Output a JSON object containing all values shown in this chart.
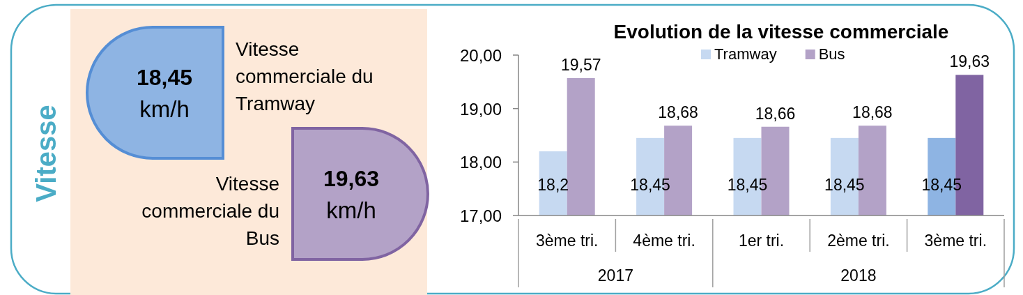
{
  "chart_data": [
    {
      "type": "other",
      "title": "Vitesse",
      "annotations": [
        "18,45",
        "km/h",
        "Vitesse commerciale du Tramway",
        "19,63",
        "km/h",
        "Vitesse commerciale du Bus"
      ]
    },
    {
      "type": "bar",
      "title": "Evolution de la vitesse commerciale",
      "categories": [
        "3ème tri.",
        "4ème tri.",
        "1er tri.",
        "2ème tri.",
        "3ème tri."
      ],
      "series": [
        {
          "name": "Tramway",
          "color": "#c6d9f1",
          "colors": [
            "#c6d9f1",
            "#c6d9f1",
            "#c6d9f1",
            "#c6d9f1",
            "#8eb4e3"
          ],
          "values": [
            18.2,
            18.45,
            18.45,
            18.45,
            18.45
          ],
          "value_labels": [
            "18,2",
            "18,45",
            "18,45",
            "18,45",
            "18,45"
          ]
        },
        {
          "name": "Bus",
          "color": "#b3a2c7",
          "colors": [
            "#b3a2c7",
            "#b3a2c7",
            "#b3a2c7",
            "#b3a2c7",
            "#8064a2"
          ],
          "values": [
            19.57,
            18.68,
            18.66,
            18.68,
            19.63
          ],
          "value_labels": [
            "19,57",
            "18,68",
            "18,66",
            "18,68",
            "19,63"
          ]
        }
      ],
      "ylim": [
        17,
        20
      ],
      "yticks": [
        {
          "value": 17,
          "label": "17,00"
        },
        {
          "value": 18,
          "label": "18,00"
        },
        {
          "value": 19,
          "label": "19,00"
        },
        {
          "value": 20,
          "label": "20,00"
        }
      ],
      "legend": "top",
      "annotations": [
        "2017",
        "2018"
      ]
    }
  ]
}
